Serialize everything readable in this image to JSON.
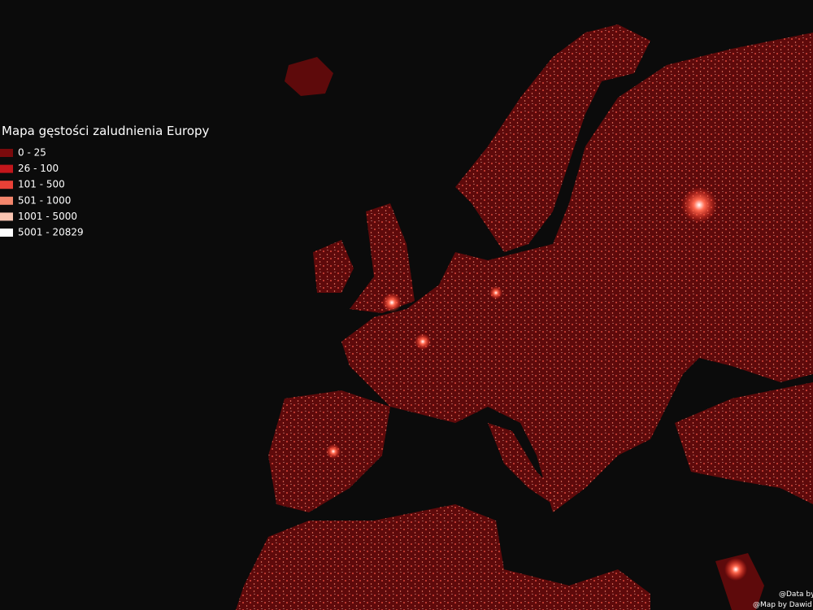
{
  "title": "Mapa gęstości zaludnienia Europy",
  "legend": [
    {
      "label": "0 - 25",
      "color": "#7a0a0c"
    },
    {
      "label": "26 - 100",
      "color": "#c2161b"
    },
    {
      "label": "101 - 500",
      "color": "#ea4137"
    },
    {
      "label": "501 - 1000",
      "color": "#f4866c"
    },
    {
      "label": "1001 - 5000",
      "color": "#f9c4b1"
    },
    {
      "label": "5001 - 20829",
      "color": "#ffffff"
    }
  ],
  "credits": [
    "@Data by GE",
    "@Map by Dawid Ro"
  ]
}
